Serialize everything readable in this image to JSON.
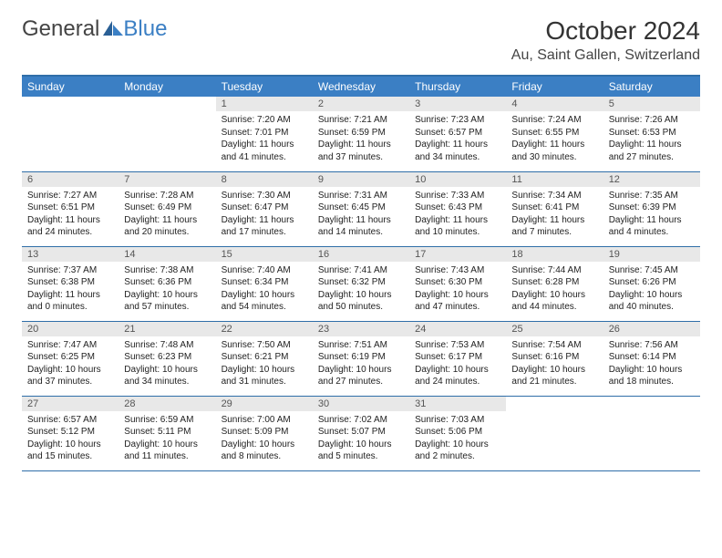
{
  "brand": {
    "name_a": "General",
    "name_b": "Blue"
  },
  "title": "October 2024",
  "location": "Au, Saint Gallen, Switzerland",
  "colors": {
    "accent": "#3b7fc4",
    "rule": "#2f6ea8",
    "daynum_bg": "#e8e8e8"
  },
  "day_headers": [
    "Sunday",
    "Monday",
    "Tuesday",
    "Wednesday",
    "Thursday",
    "Friday",
    "Saturday"
  ],
  "weeks": [
    [
      null,
      null,
      {
        "n": "1",
        "sr": "Sunrise: 7:20 AM",
        "ss": "Sunset: 7:01 PM",
        "dl": "Daylight: 11 hours and 41 minutes."
      },
      {
        "n": "2",
        "sr": "Sunrise: 7:21 AM",
        "ss": "Sunset: 6:59 PM",
        "dl": "Daylight: 11 hours and 37 minutes."
      },
      {
        "n": "3",
        "sr": "Sunrise: 7:23 AM",
        "ss": "Sunset: 6:57 PM",
        "dl": "Daylight: 11 hours and 34 minutes."
      },
      {
        "n": "4",
        "sr": "Sunrise: 7:24 AM",
        "ss": "Sunset: 6:55 PM",
        "dl": "Daylight: 11 hours and 30 minutes."
      },
      {
        "n": "5",
        "sr": "Sunrise: 7:26 AM",
        "ss": "Sunset: 6:53 PM",
        "dl": "Daylight: 11 hours and 27 minutes."
      }
    ],
    [
      {
        "n": "6",
        "sr": "Sunrise: 7:27 AM",
        "ss": "Sunset: 6:51 PM",
        "dl": "Daylight: 11 hours and 24 minutes."
      },
      {
        "n": "7",
        "sr": "Sunrise: 7:28 AM",
        "ss": "Sunset: 6:49 PM",
        "dl": "Daylight: 11 hours and 20 minutes."
      },
      {
        "n": "8",
        "sr": "Sunrise: 7:30 AM",
        "ss": "Sunset: 6:47 PM",
        "dl": "Daylight: 11 hours and 17 minutes."
      },
      {
        "n": "9",
        "sr": "Sunrise: 7:31 AM",
        "ss": "Sunset: 6:45 PM",
        "dl": "Daylight: 11 hours and 14 minutes."
      },
      {
        "n": "10",
        "sr": "Sunrise: 7:33 AM",
        "ss": "Sunset: 6:43 PM",
        "dl": "Daylight: 11 hours and 10 minutes."
      },
      {
        "n": "11",
        "sr": "Sunrise: 7:34 AM",
        "ss": "Sunset: 6:41 PM",
        "dl": "Daylight: 11 hours and 7 minutes."
      },
      {
        "n": "12",
        "sr": "Sunrise: 7:35 AM",
        "ss": "Sunset: 6:39 PM",
        "dl": "Daylight: 11 hours and 4 minutes."
      }
    ],
    [
      {
        "n": "13",
        "sr": "Sunrise: 7:37 AM",
        "ss": "Sunset: 6:38 PM",
        "dl": "Daylight: 11 hours and 0 minutes."
      },
      {
        "n": "14",
        "sr": "Sunrise: 7:38 AM",
        "ss": "Sunset: 6:36 PM",
        "dl": "Daylight: 10 hours and 57 minutes."
      },
      {
        "n": "15",
        "sr": "Sunrise: 7:40 AM",
        "ss": "Sunset: 6:34 PM",
        "dl": "Daylight: 10 hours and 54 minutes."
      },
      {
        "n": "16",
        "sr": "Sunrise: 7:41 AM",
        "ss": "Sunset: 6:32 PM",
        "dl": "Daylight: 10 hours and 50 minutes."
      },
      {
        "n": "17",
        "sr": "Sunrise: 7:43 AM",
        "ss": "Sunset: 6:30 PM",
        "dl": "Daylight: 10 hours and 47 minutes."
      },
      {
        "n": "18",
        "sr": "Sunrise: 7:44 AM",
        "ss": "Sunset: 6:28 PM",
        "dl": "Daylight: 10 hours and 44 minutes."
      },
      {
        "n": "19",
        "sr": "Sunrise: 7:45 AM",
        "ss": "Sunset: 6:26 PM",
        "dl": "Daylight: 10 hours and 40 minutes."
      }
    ],
    [
      {
        "n": "20",
        "sr": "Sunrise: 7:47 AM",
        "ss": "Sunset: 6:25 PM",
        "dl": "Daylight: 10 hours and 37 minutes."
      },
      {
        "n": "21",
        "sr": "Sunrise: 7:48 AM",
        "ss": "Sunset: 6:23 PM",
        "dl": "Daylight: 10 hours and 34 minutes."
      },
      {
        "n": "22",
        "sr": "Sunrise: 7:50 AM",
        "ss": "Sunset: 6:21 PM",
        "dl": "Daylight: 10 hours and 31 minutes."
      },
      {
        "n": "23",
        "sr": "Sunrise: 7:51 AM",
        "ss": "Sunset: 6:19 PM",
        "dl": "Daylight: 10 hours and 27 minutes."
      },
      {
        "n": "24",
        "sr": "Sunrise: 7:53 AM",
        "ss": "Sunset: 6:17 PM",
        "dl": "Daylight: 10 hours and 24 minutes."
      },
      {
        "n": "25",
        "sr": "Sunrise: 7:54 AM",
        "ss": "Sunset: 6:16 PM",
        "dl": "Daylight: 10 hours and 21 minutes."
      },
      {
        "n": "26",
        "sr": "Sunrise: 7:56 AM",
        "ss": "Sunset: 6:14 PM",
        "dl": "Daylight: 10 hours and 18 minutes."
      }
    ],
    [
      {
        "n": "27",
        "sr": "Sunrise: 6:57 AM",
        "ss": "Sunset: 5:12 PM",
        "dl": "Daylight: 10 hours and 15 minutes."
      },
      {
        "n": "28",
        "sr": "Sunrise: 6:59 AM",
        "ss": "Sunset: 5:11 PM",
        "dl": "Daylight: 10 hours and 11 minutes."
      },
      {
        "n": "29",
        "sr": "Sunrise: 7:00 AM",
        "ss": "Sunset: 5:09 PM",
        "dl": "Daylight: 10 hours and 8 minutes."
      },
      {
        "n": "30",
        "sr": "Sunrise: 7:02 AM",
        "ss": "Sunset: 5:07 PM",
        "dl": "Daylight: 10 hours and 5 minutes."
      },
      {
        "n": "31",
        "sr": "Sunrise: 7:03 AM",
        "ss": "Sunset: 5:06 PM",
        "dl": "Daylight: 10 hours and 2 minutes."
      },
      null,
      null
    ]
  ]
}
